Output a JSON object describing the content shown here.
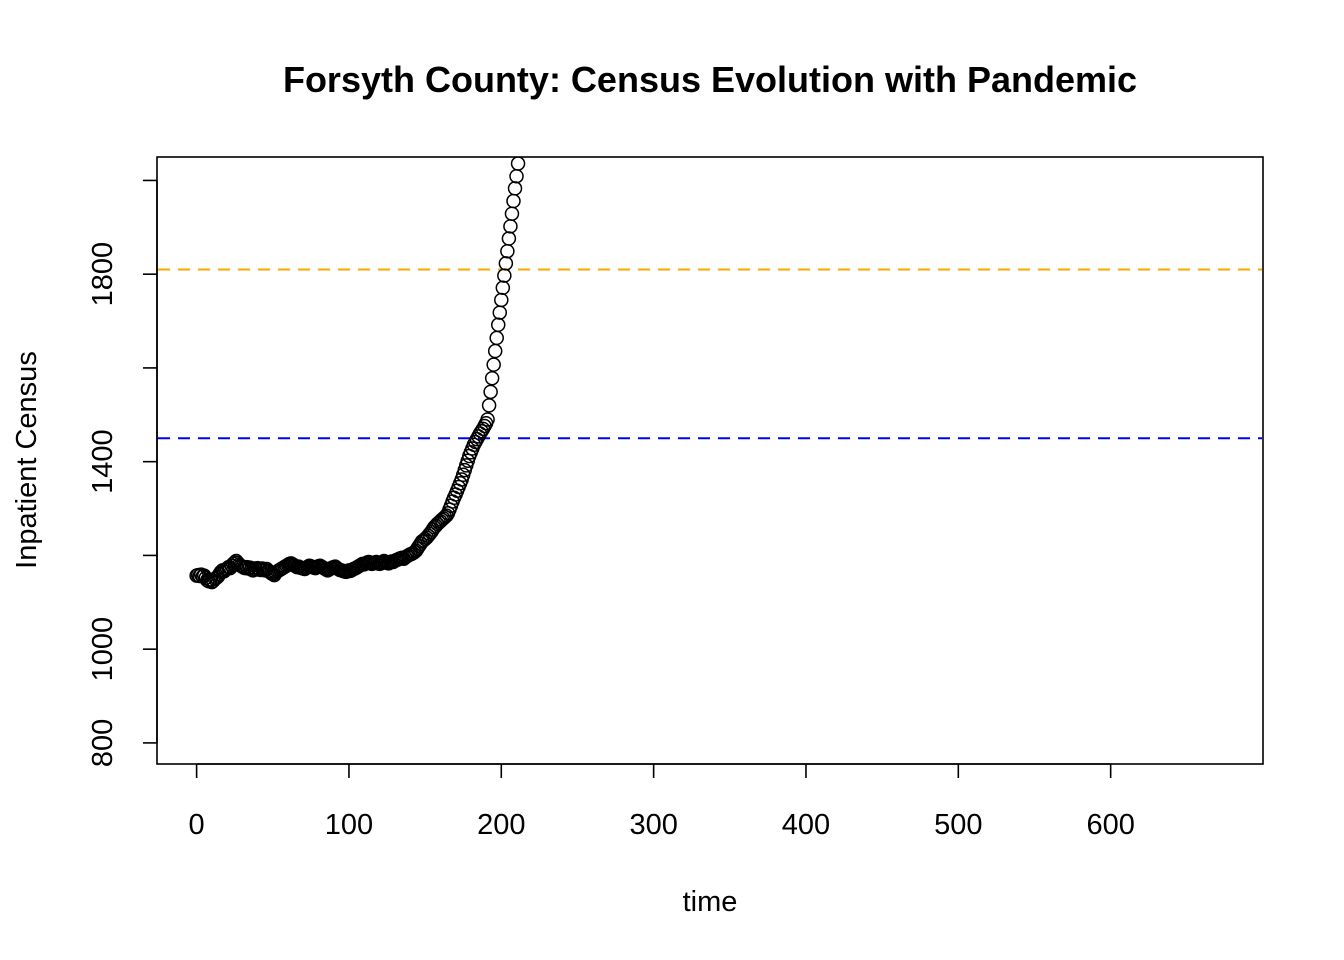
{
  "chart_data": {
    "type": "scatter",
    "title": "Forsyth County: Census Evolution with Pandemic",
    "xlabel": "time",
    "ylabel": "Inpatient Census",
    "xlim": [
      -26,
      700
    ],
    "ylim": [
      755,
      2050
    ],
    "xticks": [
      0,
      100,
      200,
      300,
      400,
      500,
      600
    ],
    "yticks": [
      800,
      1000,
      1400,
      1800
    ],
    "yticks_minor": [
      1200,
      1600,
      2000
    ],
    "grid": false,
    "reference_lines": [
      {
        "y": 1810,
        "color": "#FFA500",
        "style": "dashed"
      },
      {
        "y": 1450,
        "color": "#0000FF",
        "style": "dashed"
      }
    ],
    "points_style": {
      "marker": "open-circle",
      "color": "#000000"
    },
    "x": [
      0,
      1,
      2,
      3,
      4,
      5,
      6,
      7,
      8,
      9,
      10,
      11,
      12,
      13,
      14,
      15,
      16,
      17,
      18,
      19,
      20,
      21,
      22,
      23,
      24,
      25,
      26,
      27,
      28,
      29,
      30,
      31,
      32,
      33,
      34,
      35,
      36,
      37,
      38,
      39,
      40,
      41,
      42,
      43,
      44,
      45,
      46,
      47,
      48,
      49,
      50,
      51,
      52,
      53,
      54,
      55,
      56,
      57,
      58,
      59,
      60,
      61,
      62,
      63,
      64,
      65,
      66,
      67,
      68,
      69,
      70,
      71,
      72,
      73,
      74,
      75,
      76,
      77,
      78,
      79,
      80,
      81,
      82,
      83,
      84,
      85,
      86,
      87,
      88,
      89,
      90,
      91,
      92,
      93,
      94,
      95,
      96,
      97,
      98,
      99,
      100,
      101,
      102,
      103,
      104,
      105,
      106,
      107,
      108,
      109,
      110,
      111,
      112,
      113,
      114,
      115,
      116,
      117,
      118,
      119,
      120,
      121,
      122,
      123,
      124,
      125,
      126,
      127,
      128,
      129,
      130,
      131,
      132,
      133,
      134,
      135,
      136,
      137,
      138,
      139,
      140,
      141,
      142,
      143,
      144,
      145,
      146,
      147,
      148,
      149,
      150,
      151,
      152,
      153,
      154,
      155,
      156,
      157,
      158,
      159,
      160,
      161,
      162,
      163,
      164,
      165,
      166,
      167,
      168,
      169,
      170,
      171,
      172,
      173,
      174,
      175,
      176,
      177,
      178,
      179,
      180,
      181,
      182,
      183,
      184,
      185,
      186,
      187,
      188,
      189,
      190,
      191,
      192,
      193,
      194,
      195,
      196,
      197,
      198,
      199,
      200,
      201,
      202,
      203,
      204,
      205,
      206,
      207,
      208,
      209,
      210,
      211
    ],
    "y": [
      1157,
      1158,
      1156,
      1159,
      1155,
      1157,
      1152,
      1147,
      1145,
      1148,
      1143,
      1146,
      1150,
      1152,
      1155,
      1160,
      1165,
      1168,
      1166,
      1170,
      1172,
      1175,
      1173,
      1178,
      1182,
      1185,
      1188,
      1184,
      1180,
      1178,
      1176,
      1174,
      1173,
      1175,
      1172,
      1174,
      1170,
      1168,
      1172,
      1170,
      1173,
      1171,
      1169,
      1172,
      1170,
      1168,
      1171,
      1167,
      1165,
      1162,
      1160,
      1158,
      1163,
      1166,
      1168,
      1170,
      1172,
      1174,
      1176,
      1178,
      1180,
      1182,
      1183,
      1181,
      1179,
      1177,
      1175,
      1176,
      1174,
      1173,
      1172,
      1171,
      1174,
      1176,
      1178,
      1177,
      1175,
      1174,
      1173,
      1175,
      1177,
      1178,
      1176,
      1174,
      1172,
      1170,
      1168,
      1170,
      1172,
      1174,
      1175,
      1176,
      1173,
      1171,
      1169,
      1168,
      1167,
      1166,
      1165,
      1166,
      1168,
      1167,
      1169,
      1171,
      1172,
      1174,
      1176,
      1178,
      1180,
      1182,
      1181,
      1183,
      1185,
      1186,
      1184,
      1182,
      1183,
      1185,
      1186,
      1184,
      1182,
      1183,
      1185,
      1188,
      1186,
      1184,
      1183,
      1185,
      1187,
      1186,
      1188,
      1190,
      1191,
      1193,
      1194,
      1195,
      1193,
      1196,
      1198,
      1200,
      1202,
      1203,
      1205,
      1207,
      1210,
      1215,
      1220,
      1225,
      1230,
      1232,
      1235,
      1238,
      1242,
      1246,
      1250,
      1255,
      1260,
      1263,
      1267,
      1270,
      1273,
      1276,
      1279,
      1282,
      1285,
      1290,
      1298,
      1306,
      1315,
      1323,
      1330,
      1338,
      1346,
      1354,
      1362,
      1372,
      1382,
      1392,
      1402,
      1412,
      1420,
      1428,
      1436,
      1442,
      1448,
      1454,
      1460,
      1465,
      1470,
      1476,
      1482,
      1490,
      1520,
      1549,
      1578,
      1607,
      1636,
      1664,
      1692,
      1718,
      1745,
      1771,
      1797,
      1823,
      1849,
      1876,
      1902,
      1929,
      1956,
      1983,
      2009,
      2036
    ]
  }
}
